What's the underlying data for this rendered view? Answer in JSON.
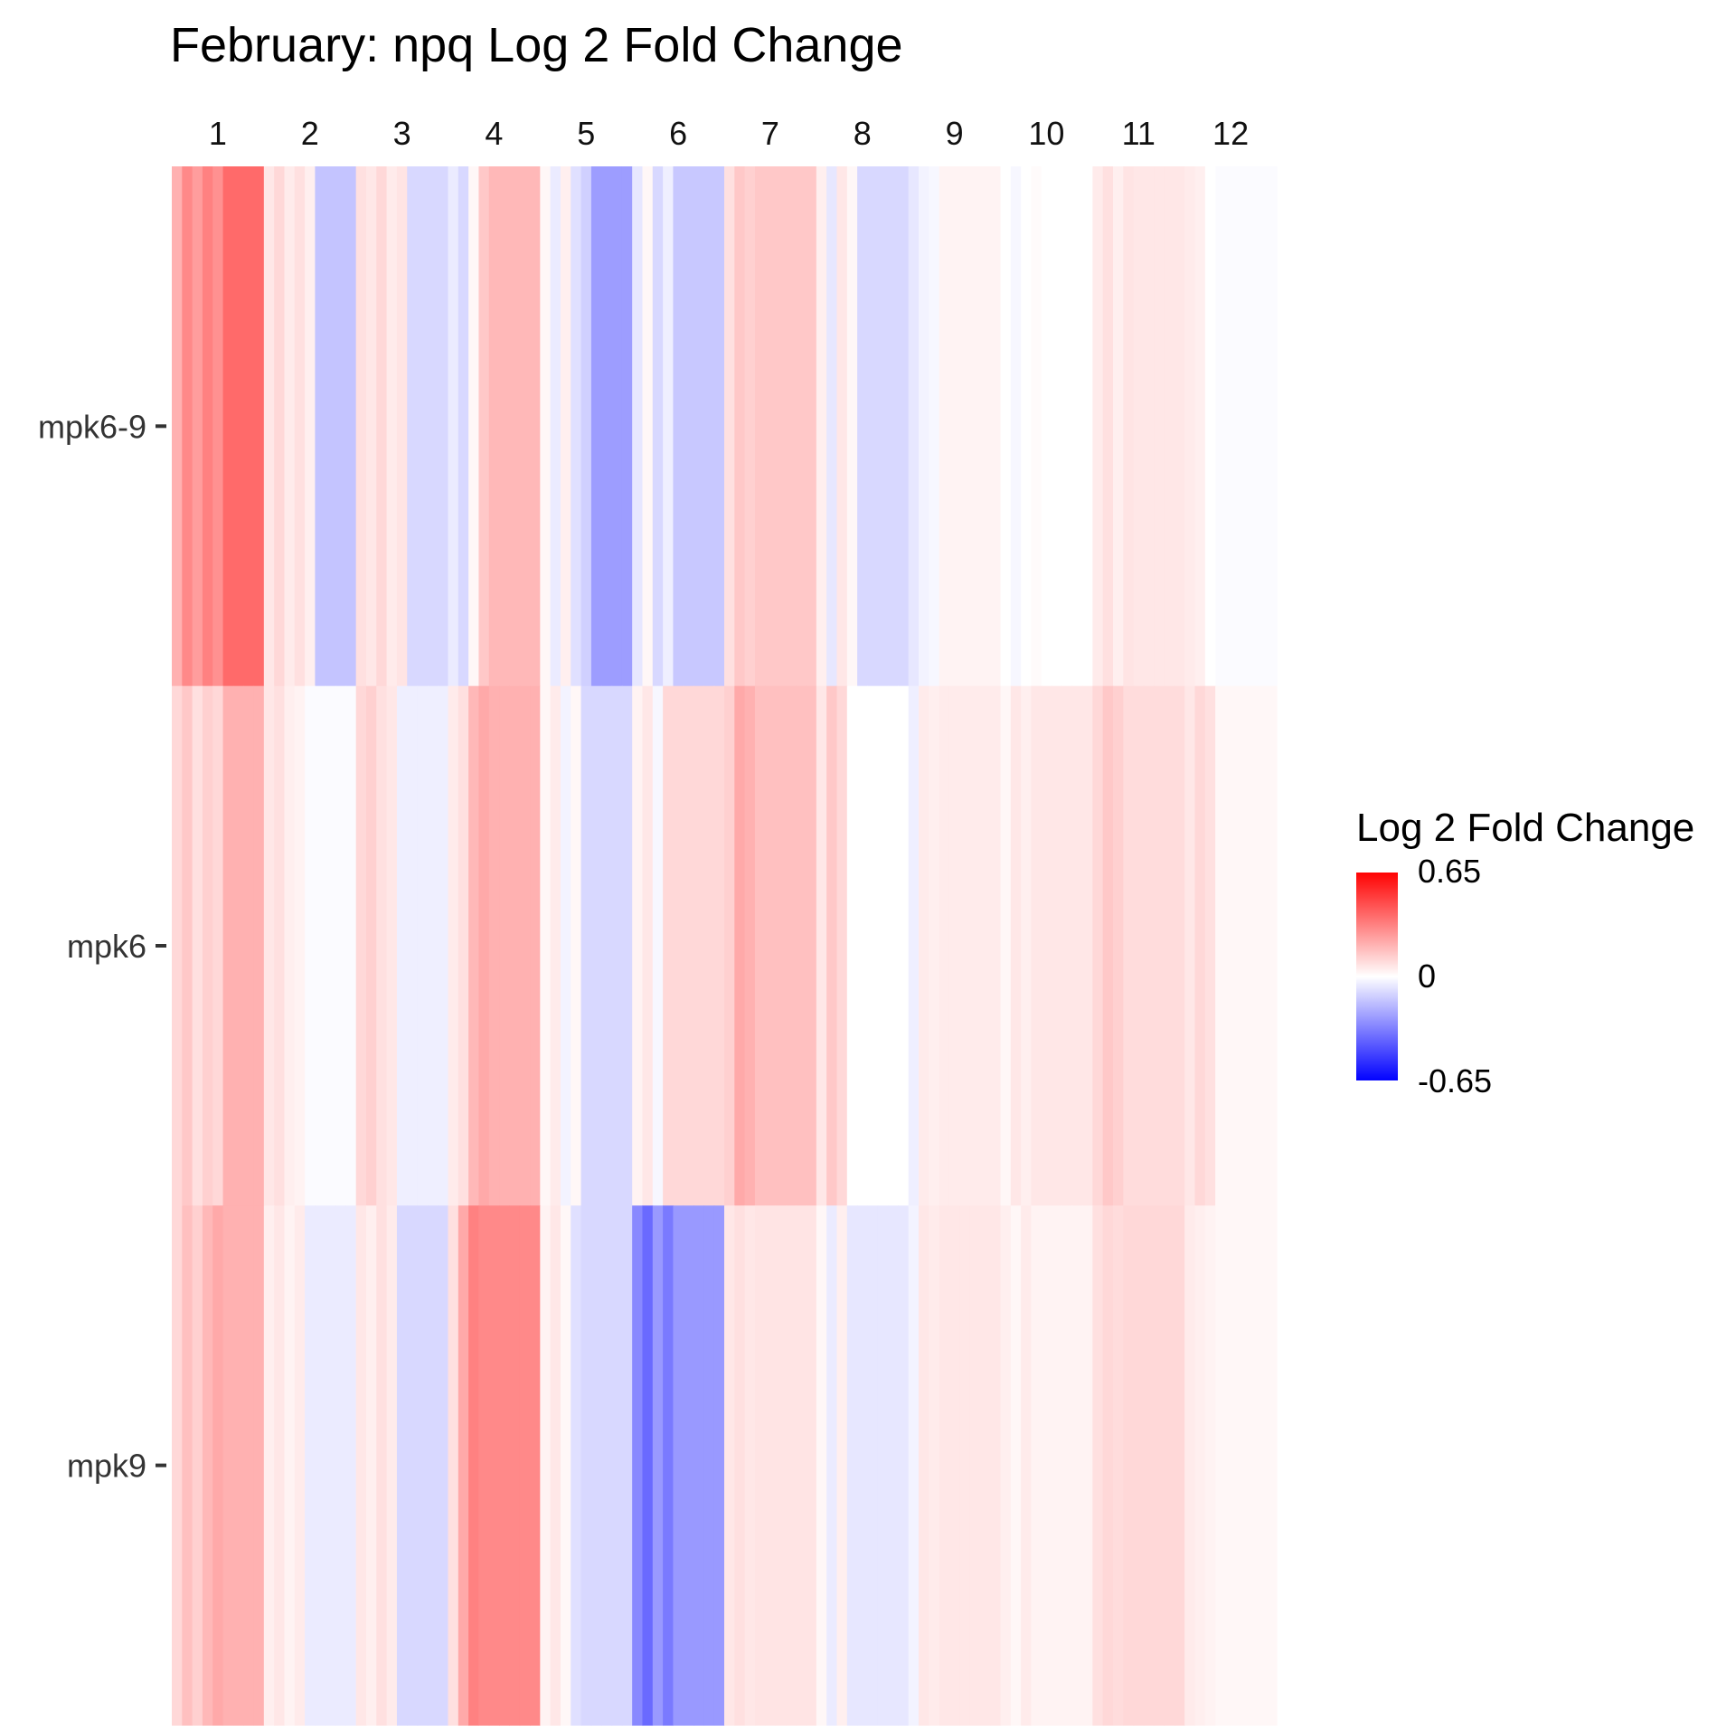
{
  "chart_data": {
    "type": "heatmap",
    "title": "February: npq Log 2 Fold Change",
    "column_labels": [
      "1",
      "2",
      "3",
      "4",
      "5",
      "6",
      "7",
      "8",
      "9",
      "10",
      "11",
      "12"
    ],
    "row_labels": [
      "mpk6-9",
      "mpk6",
      "mpk9"
    ],
    "subcolumns_per_column": 9,
    "values": [
      [
        [
          0.2,
          0.3,
          0.25,
          0.32,
          0.28,
          0.38,
          0.38,
          0.38,
          0.38
        ],
        [
          0.06,
          0.1,
          0.05,
          0.08,
          0.04,
          -0.15,
          -0.15,
          -0.15,
          -0.15
        ],
        [
          0.08,
          0.06,
          0.1,
          0.05,
          0.07,
          -0.1,
          -0.1,
          -0.1,
          -0.1
        ],
        [
          -0.05,
          -0.1,
          0.02,
          0.14,
          0.18,
          0.18,
          0.18,
          0.18,
          0.18
        ],
        [
          0.02,
          -0.05,
          0.04,
          -0.08,
          -0.12,
          -0.25,
          -0.25,
          -0.25,
          -0.25
        ],
        [
          -0.06,
          0.02,
          -0.1,
          -0.04,
          -0.14,
          -0.14,
          -0.14,
          -0.14,
          -0.14
        ],
        [
          0.08,
          0.14,
          0.12,
          0.14,
          0.14,
          0.14,
          0.14,
          0.14,
          0.14
        ],
        [
          0.04,
          -0.06,
          0.06,
          0.02,
          -0.1,
          -0.1,
          -0.1,
          -0.1,
          -0.1
        ],
        [
          -0.06,
          -0.03,
          -0.02,
          0.03,
          0.03,
          0.03,
          0.03,
          0.03,
          0.03
        ],
        [
          0.0,
          -0.02,
          0.0,
          0.01,
          0.0,
          0.0,
          0.0,
          0.0,
          0.0
        ],
        [
          0.05,
          0.08,
          0.04,
          0.07,
          0.06,
          0.06,
          0.06,
          0.06,
          0.06
        ],
        [
          0.05,
          0.04,
          0.0,
          -0.01,
          -0.01,
          -0.01,
          -0.01,
          -0.01,
          -0.01
        ]
      ],
      [
        [
          0.1,
          0.14,
          0.08,
          0.12,
          0.1,
          0.2,
          0.2,
          0.2,
          0.2
        ],
        [
          0.06,
          0.08,
          0.04,
          0.03,
          -0.01,
          -0.01,
          -0.01,
          -0.01,
          -0.01
        ],
        [
          0.1,
          0.12,
          0.08,
          0.06,
          -0.04,
          -0.04,
          -0.04,
          -0.04,
          -0.04
        ],
        [
          0.05,
          0.08,
          0.18,
          0.22,
          0.2,
          0.2,
          0.2,
          0.2,
          0.2
        ],
        [
          0.02,
          0.05,
          -0.03,
          0.02,
          -0.1,
          -0.1,
          -0.1,
          -0.1,
          -0.1
        ],
        [
          0.03,
          0.06,
          -0.02,
          0.1,
          0.1,
          0.1,
          0.1,
          0.1,
          0.1
        ],
        [
          0.12,
          0.22,
          0.2,
          0.16,
          0.16,
          0.16,
          0.16,
          0.16,
          0.16
        ],
        [
          0.06,
          0.14,
          0.1,
          0.0,
          0.0,
          0.0,
          0.0,
          0.0,
          0.0
        ],
        [
          -0.04,
          0.05,
          0.04,
          0.05,
          0.05,
          0.05,
          0.05,
          0.05,
          0.05
        ],
        [
          0.02,
          0.06,
          0.04,
          0.06,
          0.06,
          0.06,
          0.06,
          0.06,
          0.06
        ],
        [
          0.1,
          0.14,
          0.12,
          0.09,
          0.09,
          0.09,
          0.09,
          0.09,
          0.09
        ],
        [
          0.06,
          0.1,
          0.08,
          0.02,
          0.02,
          0.02,
          0.02,
          0.02,
          0.02
        ]
      ],
      [
        [
          0.1,
          0.16,
          0.12,
          0.18,
          0.22,
          0.2,
          0.2,
          0.2,
          0.2
        ],
        [
          0.04,
          0.06,
          0.03,
          0.05,
          -0.05,
          -0.05,
          -0.05,
          -0.05,
          -0.05
        ],
        [
          0.06,
          0.04,
          0.08,
          0.05,
          -0.1,
          -0.1,
          -0.1,
          -0.1,
          -0.1
        ],
        [
          0.08,
          0.22,
          0.32,
          0.3,
          0.3,
          0.3,
          0.3,
          0.3,
          0.3
        ],
        [
          0.03,
          0.06,
          0.02,
          -0.08,
          -0.1,
          -0.1,
          -0.1,
          -0.1,
          -0.1
        ],
        [
          -0.3,
          -0.38,
          -0.26,
          -0.34,
          -0.26,
          -0.26,
          -0.26,
          -0.26,
          -0.26
        ],
        [
          0.06,
          0.08,
          0.06,
          0.07,
          0.07,
          0.07,
          0.07,
          0.07,
          0.07
        ],
        [
          0.02,
          -0.05,
          0.04,
          -0.06,
          -0.06,
          -0.06,
          -0.06,
          -0.06,
          -0.06
        ],
        [
          -0.03,
          0.06,
          0.05,
          0.06,
          0.06,
          0.06,
          0.06,
          0.06,
          0.06
        ],
        [
          0.04,
          0.02,
          0.05,
          0.03,
          0.03,
          0.03,
          0.03,
          0.03,
          0.03
        ],
        [
          0.08,
          0.1,
          0.09,
          0.1,
          0.1,
          0.1,
          0.1,
          0.1,
          0.1
        ],
        [
          0.05,
          0.04,
          0.03,
          0.02,
          0.02,
          0.02,
          0.02,
          0.02,
          0.02
        ]
      ]
    ],
    "color_scale": {
      "low": "#0000ff",
      "mid": "#ffffff",
      "high": "#ff0000",
      "limits": [
        -0.65,
        0.65
      ]
    },
    "legend": {
      "title": "Log 2 Fold Change",
      "placement": "right",
      "ticks": [
        0.65,
        0,
        -0.65
      ],
      "tick_labels": [
        "0.65",
        "0",
        "-0.65"
      ]
    },
    "grid": false
  }
}
